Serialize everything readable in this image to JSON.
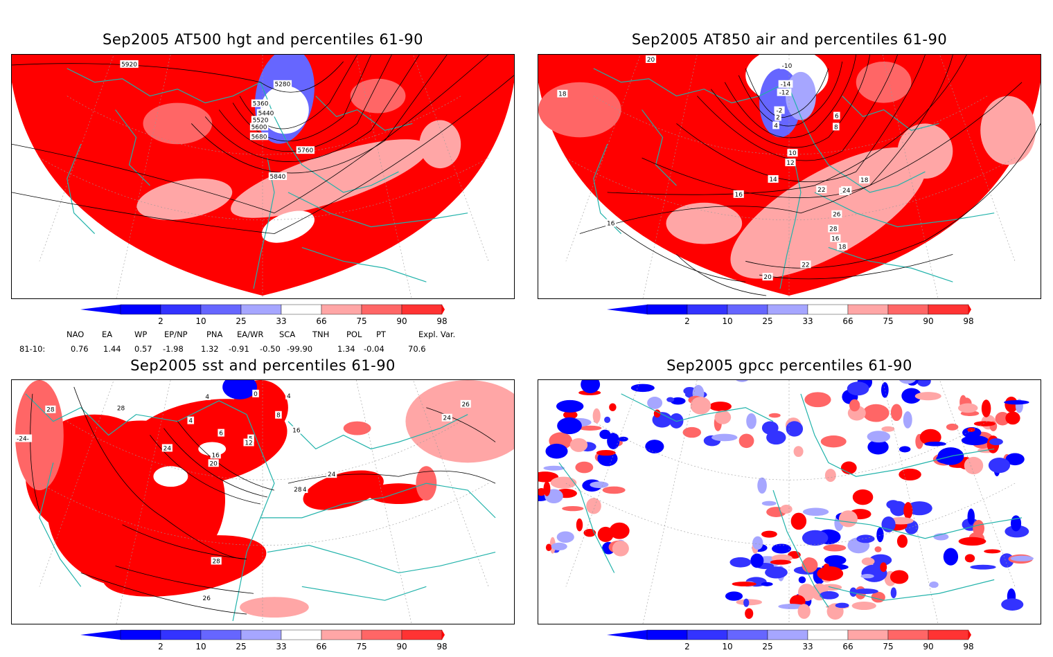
{
  "panels": [
    {
      "id": "hgt500",
      "title": "Sep2005 AT500 hgt and percentiles 61-90",
      "contour_labels": [
        "5920",
        "5280",
        "5360",
        "5440",
        "5520",
        "5600",
        "5680",
        "5760",
        "5840"
      ]
    },
    {
      "id": "air850",
      "title": "Sep2005 AT850 air and percentiles 61-90",
      "contour_labels": [
        "20",
        "18",
        "-10",
        "-14",
        "-12",
        "-2",
        "2",
        "4",
        "6",
        "8",
        "10",
        "12",
        "14",
        "16",
        "18",
        "20",
        "22",
        "24",
        "26",
        "28",
        "16",
        "18",
        "22",
        "16",
        "20"
      ]
    },
    {
      "id": "sst",
      "title": "Sep2005 sst and percentiles 61-90",
      "contour_labels": [
        "28",
        "-24-",
        "28",
        "4",
        "0",
        "4",
        "8",
        "4",
        "6",
        "5",
        "12",
        "16",
        "20",
        "24",
        "16",
        "24",
        "24",
        "28",
        "28",
        "26",
        "26",
        "24"
      ]
    },
    {
      "id": "gpcc",
      "title": "Sep2005 gpcc percentiles 61-90",
      "contour_labels": []
    }
  ],
  "colorbar": {
    "tick_labels": [
      "2",
      "10",
      "25",
      "33",
      "66",
      "75",
      "90",
      "98"
    ],
    "colors": {
      "deep_blue": "#0000ff",
      "blue": "#3333ff",
      "mid_blue": "#6666ff",
      "light_blue": "#a6a6ff",
      "white": "#ffffff",
      "light_red": "#ffa6a6",
      "mid_red": "#ff6666",
      "red": "#ff3333",
      "deep_red": "#ff0000"
    }
  },
  "map_colors": {
    "coast": "#20b2aa",
    "grid": "#999999",
    "contour": "#000000"
  },
  "teleconnection_indices": {
    "headers": [
      "NAO",
      "EA",
      "WP",
      "EP/NP",
      "PNA",
      "EA/WR",
      "SCA",
      "TNH",
      "POL",
      "PT",
      "Expl. Var."
    ],
    "row_label": "81-10:",
    "values": [
      "0.76",
      "1.44",
      "0.57",
      "-1.98",
      "1.32",
      "-0.91",
      "-0.50",
      "-99.90",
      "1.34",
      "-0.04",
      "70.6"
    ]
  }
}
